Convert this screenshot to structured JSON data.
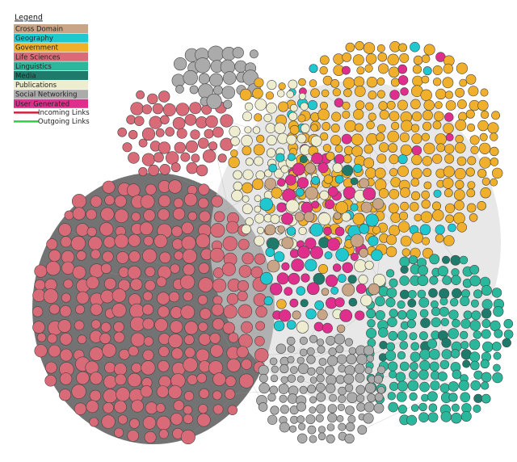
{
  "legend": {
    "title": "Legend",
    "items": [
      {
        "label": "Cross Domain",
        "color": "#c9a587"
      },
      {
        "label": "Geography",
        "color": "#1fc8cf"
      },
      {
        "label": "Government",
        "color": "#f1b02c"
      },
      {
        "label": "Life Sciences",
        "color": "#d96b78"
      },
      {
        "label": "Linguistics",
        "color": "#2bb79c"
      },
      {
        "label": "Media",
        "color": "#1e7b6c"
      },
      {
        "label": "Publications",
        "color": "#efedcf"
      },
      {
        "label": "Social Networking",
        "color": "#ababab"
      },
      {
        "label": "User Generated",
        "color": "#e02e8c"
      }
    ],
    "links": [
      {
        "label": "Incoming Links",
        "color": "#d0203c"
      },
      {
        "label": "Outgoing Links",
        "color": "#2fd040"
      }
    ]
  }
}
